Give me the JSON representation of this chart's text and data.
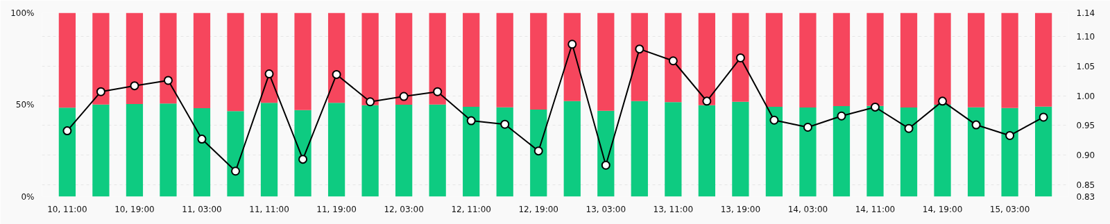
{
  "chart_data": {
    "type": "bar",
    "stacked": true,
    "categories": [
      "10, 11:00",
      null,
      "10, 19:00",
      null,
      "11, 03:00",
      null,
      "11, 11:00",
      null,
      "11, 19:00",
      null,
      "12, 03:00",
      null,
      "12, 11:00",
      null,
      "12, 19:00",
      null,
      "13, 03:00",
      null,
      "13, 11:00",
      null,
      "13, 19:00",
      null,
      "14, 03:00",
      null,
      "14, 11:00",
      null,
      "14, 19:00",
      null,
      "15, 03:00",
      null
    ],
    "series": [
      {
        "color": "#0ecb81",
        "values": [
          48.4,
          50.1,
          50.4,
          50.7,
          48.1,
          46.5,
          51.0,
          47.1,
          51.0,
          49.7,
          50.0,
          50.1,
          48.9,
          48.6,
          47.4,
          52.0,
          46.7,
          52.0,
          51.4,
          49.7,
          51.6,
          48.9,
          48.5,
          49.2,
          49.3,
          48.5,
          50.0,
          48.6,
          48.2,
          49.0
        ]
      },
      {
        "color": "#f6465d",
        "values": [
          51.6,
          49.9,
          49.6,
          49.3,
          51.9,
          53.5,
          49.0,
          52.9,
          49.0,
          50.3,
          50.0,
          49.9,
          51.1,
          51.4,
          52.6,
          48.0,
          53.3,
          48.0,
          48.6,
          50.3,
          48.4,
          51.1,
          51.5,
          50.8,
          50.7,
          51.5,
          50.0,
          51.4,
          51.8,
          51.0
        ]
      },
      {
        "type": "line",
        "axis": "y2",
        "color": "#000000",
        "marker": "circle",
        "values": [
          0.941,
          1.007,
          1.017,
          1.026,
          0.927,
          0.873,
          1.037,
          0.893,
          1.036,
          0.99,
          0.999,
          1.007,
          0.958,
          0.952,
          0.907,
          1.087,
          0.883,
          1.079,
          1.059,
          0.991,
          1.064,
          0.959,
          0.947,
          0.966,
          0.981,
          0.945,
          0.991,
          0.951,
          0.933,
          0.964
        ]
      }
    ],
    "ylim": [
      0,
      100
    ],
    "yticks": [
      {
        "value": 0,
        "label": "0%"
      },
      {
        "value": 50,
        "label": "50%"
      },
      {
        "value": 100,
        "label": "100%"
      }
    ],
    "y2lim": [
      0.83,
      1.14
    ],
    "y2ticks": [
      0.83,
      0.85,
      {
        "value": 0.9,
        "label": "0.90"
      },
      0.95,
      {
        "value": 1.0,
        "label": "1.00"
      },
      1.05,
      {
        "value": 1.1,
        "label": "1.10"
      },
      1.14
    ],
    "grid": "y2"
  }
}
